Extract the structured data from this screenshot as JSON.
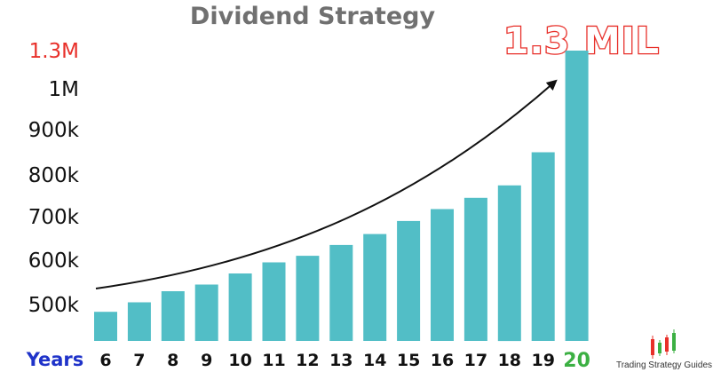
{
  "chart_data": {
    "type": "bar",
    "title": "Dividend Strategy",
    "xlabel": "Years",
    "ylabel": "",
    "categories": [
      "6",
      "7",
      "8",
      "9",
      "10",
      "11",
      "12",
      "13",
      "14",
      "15",
      "16",
      "17",
      "18",
      "19",
      "20"
    ],
    "values": [
      490000,
      505000,
      530000,
      545000,
      570000,
      595000,
      610000,
      635000,
      660000,
      690000,
      718000,
      745000,
      775000,
      850000,
      1300000
    ],
    "y_ticks": [
      {
        "label": "1.3M",
        "value": 1300000,
        "color": "#e8302a"
      },
      {
        "label": "1M",
        "value": 1000000
      },
      {
        "label": "900k",
        "value": 900000
      },
      {
        "label": "800k",
        "value": 800000
      },
      {
        "label": "700k",
        "value": 700000
      },
      {
        "label": "600k",
        "value": 600000
      },
      {
        "label": "500k",
        "value": 500000
      }
    ],
    "annotation": "1.3 MIL",
    "trend_arrow": true,
    "grid": false,
    "colors": {
      "bar": "#52bec6",
      "title": "#707070",
      "years_label": "#1f33c9",
      "highlight_category": "#3cb043",
      "annotation": "#e8302a"
    }
  },
  "branding": {
    "text": "Trading Strategy Guides",
    "icon": "candlestick-logo-icon"
  }
}
